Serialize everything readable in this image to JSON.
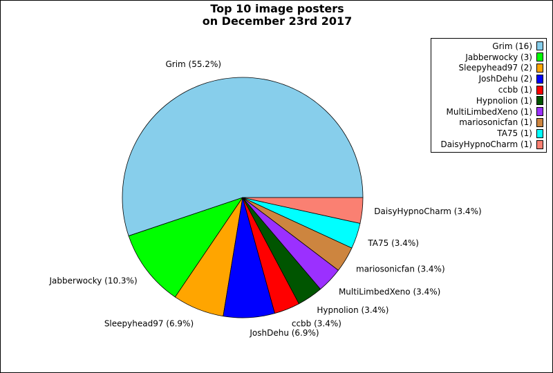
{
  "chart_data": {
    "type": "pie",
    "title": "Top 10 image posters\non December 23rd 2017",
    "slices": [
      {
        "label": "Grim",
        "count": 16,
        "percent_label": "Grim (55.2%)",
        "legend_label": "Grim (16)",
        "color": "#87ceeb"
      },
      {
        "label": "Jabberwocky",
        "count": 3,
        "percent_label": "Jabberwocky (10.3%)",
        "legend_label": "Jabberwocky (3)",
        "color": "#00ff00"
      },
      {
        "label": "Sleepyhead97",
        "count": 2,
        "percent_label": "Sleepyhead97 (6.9%)",
        "legend_label": "Sleepyhead97 (2)",
        "color": "#ffa500"
      },
      {
        "label": "JoshDehu",
        "count": 2,
        "percent_label": "JoshDehu (6.9%)",
        "legend_label": "JoshDehu (2)",
        "color": "#0000ff"
      },
      {
        "label": "ccbb",
        "count": 1,
        "percent_label": "ccbb (3.4%)",
        "legend_label": "ccbb (1)",
        "color": "#ff0000"
      },
      {
        "label": "Hypnolion",
        "count": 1,
        "percent_label": "Hypnolion (3.4%)",
        "legend_label": "Hypnolion (1)",
        "color": "#005500"
      },
      {
        "label": "MultiLimbedXeno",
        "count": 1,
        "percent_label": "MultiLimbedXeno (3.4%)",
        "legend_label": "MultiLimbedXeno (1)",
        "color": "#9b30ff"
      },
      {
        "label": "mariosonicfan",
        "count": 1,
        "percent_label": "mariosonicfan (3.4%)",
        "legend_label": "mariosonicfan (1)",
        "color": "#cd853f"
      },
      {
        "label": "TA75",
        "count": 1,
        "percent_label": "TA75 (3.4%)",
        "legend_label": "TA75 (1)",
        "color": "#00ffff"
      },
      {
        "label": "DaisyHypnoCharm",
        "count": 1,
        "percent_label": "DaisyHypnoCharm (3.4%)",
        "legend_label": "DaisyHypnoCharm (1)",
        "color": "#fa8072"
      }
    ],
    "legend_position": "top-right",
    "start_angle_deg": 0,
    "direction": "counterclockwise"
  }
}
